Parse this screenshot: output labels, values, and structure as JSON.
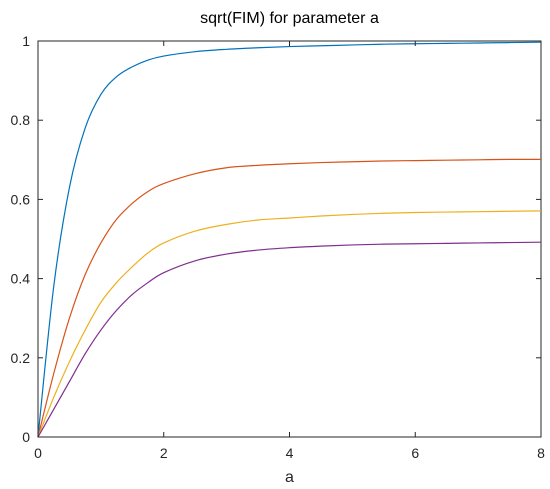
{
  "chart_data": {
    "type": "line",
    "title": "sqrt(FIM) for parameter a",
    "xlabel": "a",
    "ylabel": "",
    "xlim": [
      0,
      8
    ],
    "ylim": [
      0,
      1
    ],
    "xticks": [
      0,
      2,
      4,
      6,
      8
    ],
    "yticks": [
      0,
      0.2,
      0.4,
      0.6,
      0.8,
      1
    ],
    "xtick_labels": [
      "0",
      "2",
      "4",
      "6",
      "8"
    ],
    "ytick_labels": [
      "0",
      "0.2",
      "0.4",
      "0.6",
      "0.8",
      "1"
    ],
    "grid": false,
    "legend": "none",
    "x": [
      0,
      0.25,
      0.5,
      0.75,
      1,
      1.25,
      1.5,
      1.75,
      2,
      2.5,
      3,
      3.5,
      4,
      4.5,
      5,
      5.5,
      6,
      6.5,
      7,
      7.5,
      8
    ],
    "series": [
      {
        "color": "#0072BD",
        "values": [
          0,
          0.38,
          0.63,
          0.78,
          0.865,
          0.91,
          0.935,
          0.952,
          0.962,
          0.973,
          0.979,
          0.983,
          0.986,
          0.988,
          0.99,
          0.992,
          0.993,
          0.994,
          0.995,
          0.996,
          0.997
        ]
      },
      {
        "color": "#D95319",
        "values": [
          0,
          0.16,
          0.3,
          0.41,
          0.49,
          0.55,
          0.59,
          0.62,
          0.64,
          0.665,
          0.68,
          0.686,
          0.69,
          0.693,
          0.695,
          0.697,
          0.698,
          0.699,
          0.7,
          0.701,
          0.701
        ]
      },
      {
        "color": "#EDB120",
        "values": [
          0,
          0.1,
          0.19,
          0.27,
          0.34,
          0.39,
          0.43,
          0.465,
          0.49,
          0.52,
          0.537,
          0.548,
          0.553,
          0.558,
          0.562,
          0.565,
          0.567,
          0.568,
          0.569,
          0.57,
          0.571
        ]
      },
      {
        "color": "#7E2F8E",
        "values": [
          0,
          0.07,
          0.14,
          0.21,
          0.27,
          0.32,
          0.36,
          0.39,
          0.415,
          0.445,
          0.462,
          0.472,
          0.478,
          0.482,
          0.485,
          0.487,
          0.488,
          0.489,
          0.49,
          0.491,
          0.492
        ]
      }
    ]
  }
}
